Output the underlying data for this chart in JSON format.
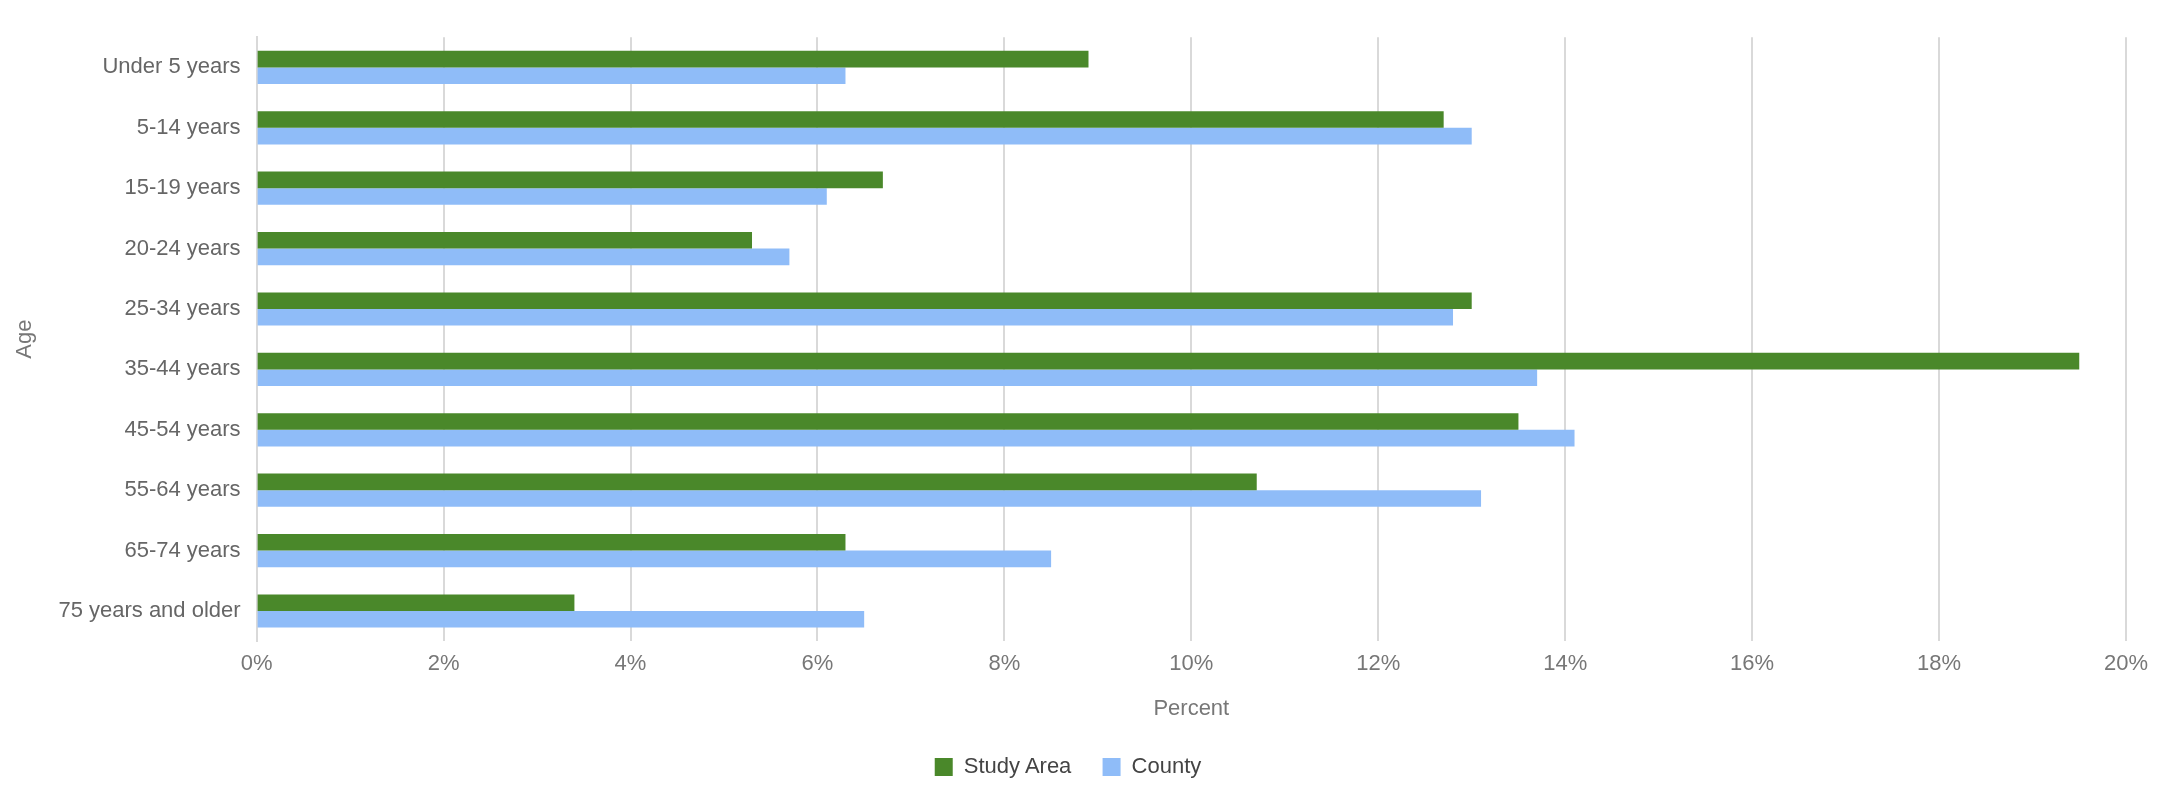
{
  "chart_data": {
    "type": "bar",
    "orientation": "horizontal",
    "xlabel": "Percent",
    "ylabel": "Age",
    "categories": [
      "Under 5 years",
      "5-14 years",
      "15-19 years",
      "20-24 years",
      "25-34 years",
      "35-44 years",
      "45-54 years",
      "55-64 years",
      "65-74 years",
      "75 years and older"
    ],
    "series": [
      {
        "name": "Study Area",
        "color": "#4a882a",
        "values": [
          8.9,
          12.7,
          6.7,
          5.3,
          13.0,
          19.5,
          13.5,
          10.7,
          6.3,
          3.4
        ]
      },
      {
        "name": "County",
        "color": "#8fbcf8",
        "values": [
          6.3,
          13.0,
          6.1,
          5.7,
          12.8,
          13.7,
          14.1,
          13.1,
          8.5,
          6.5
        ]
      }
    ],
    "xlim": [
      0,
      20
    ],
    "xticks": [
      {
        "value": 0,
        "label": "0%"
      },
      {
        "value": 2,
        "label": "2%"
      },
      {
        "value": 4,
        "label": "4%"
      },
      {
        "value": 6,
        "label": "6%"
      },
      {
        "value": 8,
        "label": "8%"
      },
      {
        "value": 10,
        "label": "10%"
      },
      {
        "value": 12,
        "label": "12%"
      },
      {
        "value": 14,
        "label": "14%"
      },
      {
        "value": 16,
        "label": "16%"
      },
      {
        "value": 18,
        "label": "18%"
      },
      {
        "value": 20,
        "label": "20%"
      }
    ],
    "grid": "x",
    "legend": "bottom"
  }
}
